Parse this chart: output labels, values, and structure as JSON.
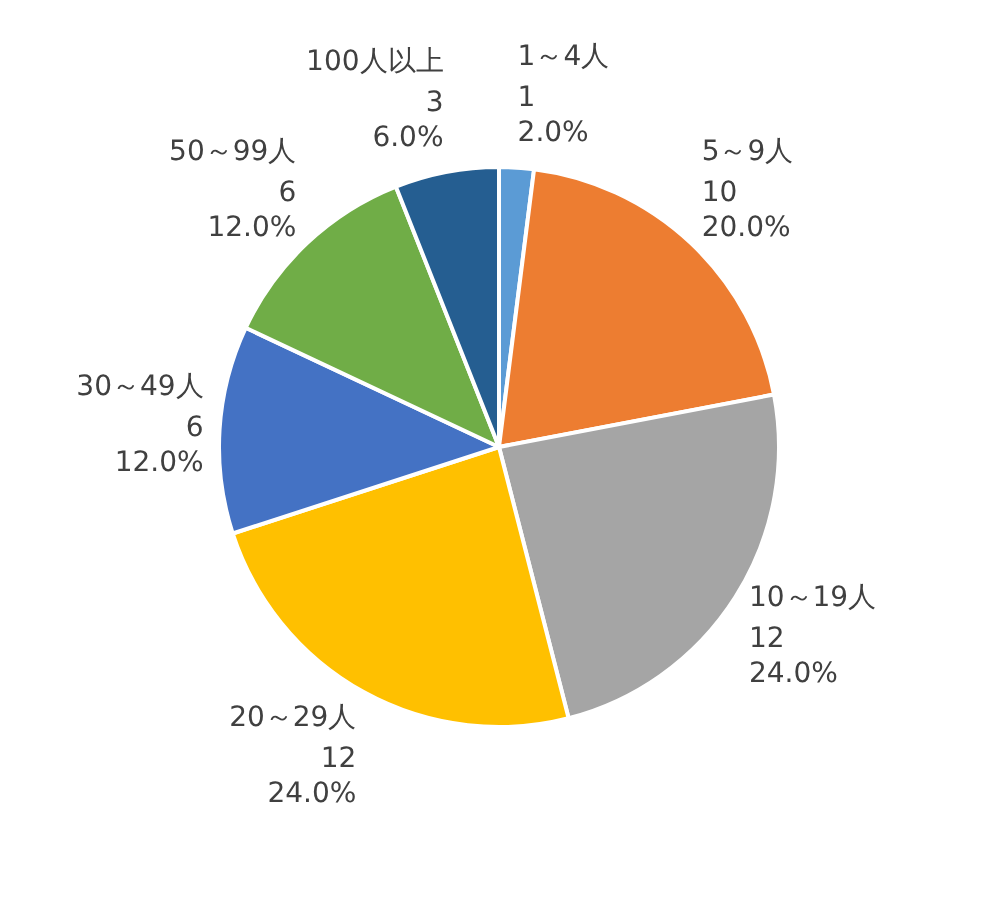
{
  "chart_data": {
    "type": "pie",
    "categories": [
      "1～4人",
      "5～9人",
      "10～19人",
      "20～29人",
      "30～49人",
      "50～99人",
      "100人以上"
    ],
    "values": [
      1,
      10,
      12,
      12,
      6,
      6,
      3
    ],
    "colors": [
      "#5b9bd5",
      "#ed7d31",
      "#a5a5a5",
      "#ffc000",
      "#4472c4",
      "#70ad47",
      "#255e91"
    ],
    "value_labels": [
      "1\n2.0%",
      "10\n20.0%",
      "12\n24.0%",
      "12\n24.0%",
      "6\n12.0%",
      "6\n12.0%",
      "3\n6.0%"
    ]
  }
}
